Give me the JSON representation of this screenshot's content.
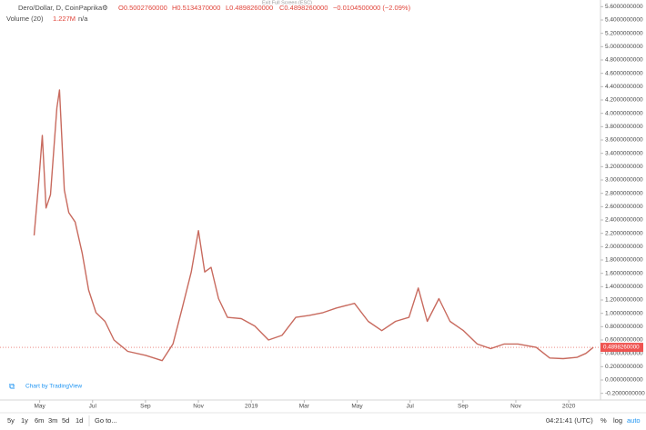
{
  "header": {
    "symbol": "Dero/Dollar, D, CoinPaprika",
    "open": "O0.5002760000",
    "high": "H0.5134370000",
    "low": "L0.4898260000",
    "close": "C0.4898260000",
    "change": "−0.0104500000 (−2.09%)",
    "tooltip": "Exit Full Screen (ESC)",
    "volume_label": "Volume (20)",
    "volume_value": "1.227M",
    "volume_ma": "n/a"
  },
  "watermark": "Chart by TradingView",
  "toolbar": {
    "ranges": [
      "5y",
      "1y",
      "6m",
      "3m",
      "5d",
      "1d"
    ],
    "goto": "Go to...",
    "clock": "04:21:41 (UTC)",
    "percent": "%",
    "log": "log",
    "auto": "auto"
  },
  "chart_data": {
    "type": "line",
    "color": "#c86a5e",
    "x": [
      -0.21,
      -0.03,
      0.1,
      0.24,
      0.41,
      0.65,
      0.75,
      0.93,
      1.1,
      1.34,
      1.61,
      1.85,
      2.13,
      2.47,
      2.81,
      3.33,
      4.01,
      4.63,
      5.04,
      5.39,
      5.73,
      6.0,
      6.24,
      6.48,
      6.76,
      7.1,
      7.62,
      8.13,
      8.65,
      9.16,
      9.68,
      10.19,
      10.71,
      11.22,
      11.9,
      12.42,
      12.93,
      13.45,
      13.96,
      14.31,
      14.65,
      15.09,
      15.51,
      16.02,
      16.54,
      17.05,
      17.56,
      18.08,
      18.77,
      19.28,
      19.79,
      20.31,
      20.65,
      20.93
    ],
    "values": [
      2.17,
      2.99,
      3.67,
      2.58,
      2.78,
      4.08,
      4.35,
      2.85,
      2.51,
      2.37,
      1.9,
      1.35,
      1.01,
      0.88,
      0.6,
      0.43,
      0.37,
      0.29,
      0.54,
      1.08,
      1.62,
      2.24,
      1.62,
      1.69,
      1.22,
      0.94,
      0.92,
      0.81,
      0.6,
      0.67,
      0.94,
      0.97,
      1.01,
      1.08,
      1.15,
      0.88,
      0.74,
      0.88,
      0.94,
      1.38,
      0.88,
      1.22,
      0.88,
      0.74,
      0.54,
      0.47,
      0.54,
      0.54,
      0.49,
      0.33,
      0.32,
      0.34,
      0.4,
      0.49
    ],
    "last_price": {
      "value": 0.489826,
      "label": "0.4898260000"
    },
    "xlim": [
      -1.5,
      21.2
    ],
    "ylim": [
      -0.2999,
      5.7
    ],
    "xticks": [
      {
        "value": 0,
        "label": "May"
      },
      {
        "value": 2,
        "label": "Jul"
      },
      {
        "value": 4,
        "label": "Sep"
      },
      {
        "value": 6,
        "label": "Nov"
      },
      {
        "value": 8,
        "label": "2019"
      },
      {
        "value": 10,
        "label": "Mar"
      },
      {
        "value": 12,
        "label": "May"
      },
      {
        "value": 14,
        "label": "Jul"
      },
      {
        "value": 16,
        "label": "Sep"
      },
      {
        "value": 18,
        "label": "Nov"
      },
      {
        "value": 20,
        "label": "2020"
      }
    ],
    "yticks": [
      {
        "value": 5.6,
        "label": "5.6000000000"
      },
      {
        "value": 5.4,
        "label": "5.4000000000"
      },
      {
        "value": 5.2,
        "label": "5.2000000000"
      },
      {
        "value": 5.0,
        "label": "5.0000000000"
      },
      {
        "value": 4.8,
        "label": "4.8000000000"
      },
      {
        "value": 4.6,
        "label": "4.6000000000"
      },
      {
        "value": 4.4,
        "label": "4.4000000000"
      },
      {
        "value": 4.2,
        "label": "4.2000000000"
      },
      {
        "value": 4.0,
        "label": "4.0000000000"
      },
      {
        "value": 3.8,
        "label": "3.8000000000"
      },
      {
        "value": 3.6,
        "label": "3.6000000000"
      },
      {
        "value": 3.4,
        "label": "3.4000000000"
      },
      {
        "value": 3.2,
        "label": "3.2000000000"
      },
      {
        "value": 3.0,
        "label": "3.0000000000"
      },
      {
        "value": 2.8,
        "label": "2.8000000000"
      },
      {
        "value": 2.6,
        "label": "2.6000000000"
      },
      {
        "value": 2.4,
        "label": "2.4000000000"
      },
      {
        "value": 2.2,
        "label": "2.2000000000"
      },
      {
        "value": 2.0,
        "label": "2.0000000000"
      },
      {
        "value": 1.8,
        "label": "1.8000000000"
      },
      {
        "value": 1.6,
        "label": "1.6000000000"
      },
      {
        "value": 1.4,
        "label": "1.4000000000"
      },
      {
        "value": 1.2,
        "label": "1.2000000000"
      },
      {
        "value": 1.0,
        "label": "1.0000000000"
      },
      {
        "value": 0.8,
        "label": "0.8000000000"
      },
      {
        "value": 0.6,
        "label": "0.6000000000"
      },
      {
        "value": 0.4,
        "label": "0.4000000000"
      },
      {
        "value": 0.2,
        "label": "0.2000000000"
      },
      {
        "value": 0,
        "label": "0.0000000000"
      },
      {
        "value": -0.2,
        "label": "-0.2000000000"
      }
    ]
  }
}
